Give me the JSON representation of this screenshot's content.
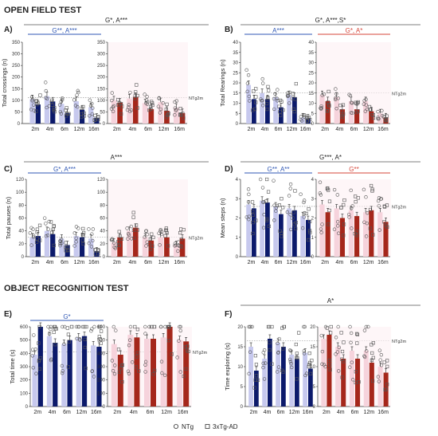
{
  "sections": [
    "OPEN FIELD TEST",
    "OBJECT RECOGNITION TEST"
  ],
  "legend": {
    "ntg": "NTg",
    "tg": "3xTg-AD"
  },
  "colors": {
    "ntg_male": "#c7c9ee",
    "tg_male": "#0c1a6b",
    "ntg_female": "#f6d3dc",
    "tg_female": "#a5271b",
    "blue_line": "#2f57b4",
    "red_line": "#d6463a",
    "grey_line": "#555555"
  },
  "chart_data": [
    {
      "type": "bar",
      "panel": "A)",
      "ylabel": "Total crossings (n)",
      "ylim": [
        0,
        350
      ],
      "yticks": [
        0,
        50,
        100,
        150,
        200,
        250,
        300,
        350
      ],
      "categories": [
        "2m",
        "4m",
        "6m",
        "12m",
        "16m"
      ],
      "reference": {
        "label": "NTg2m",
        "value": 112
      },
      "top_stat": "G*, A***",
      "left_stat": "G**, A***",
      "right_stat": "",
      "series": [
        {
          "name": "NTg",
          "sex": "male",
          "values": [
            105,
            118,
            85,
            96,
            70
          ]
        },
        {
          "name": "3xTg-AD",
          "sex": "male",
          "values": [
            82,
            95,
            45,
            60,
            25
          ]
        },
        {
          "name": "NTg",
          "sex": "female",
          "values": [
            100,
            108,
            88,
            92,
            68
          ]
        },
        {
          "name": "3xTg-AD",
          "sex": "female",
          "values": [
            90,
            115,
            62,
            55,
            45
          ]
        }
      ]
    },
    {
      "type": "bar",
      "panel": "B)",
      "ylabel": "Total Rearings (n)",
      "ylim": [
        0,
        40
      ],
      "yticks": [
        0,
        5,
        10,
        15,
        20,
        25,
        30,
        35,
        40
      ],
      "categories": [
        "2m",
        "4m",
        "6m",
        "12m",
        "16m"
      ],
      "reference": {
        "label": "NTg2m",
        "value": 15
      },
      "top_stat": "G*, A***,S*",
      "left_stat": "A***",
      "right_stat": "G*, A*",
      "series": [
        {
          "name": "NTg",
          "sex": "male",
          "values": [
            19,
            15,
            13,
            14,
            3
          ]
        },
        {
          "name": "3xTg-AD",
          "sex": "male",
          "values": [
            12,
            12,
            8,
            13,
            2.5
          ]
        },
        {
          "name": "NTg",
          "sex": "female",
          "values": [
            14,
            13,
            11,
            11,
            5
          ]
        },
        {
          "name": "3xTg-AD",
          "sex": "female",
          "values": [
            11,
            7,
            7,
            6,
            3
          ]
        }
      ]
    },
    {
      "type": "bar",
      "panel": "C)",
      "ylabel": "Total pauses (n)",
      "ylim": [
        0,
        120
      ],
      "yticks": [
        0,
        20,
        40,
        60,
        80,
        100,
        120
      ],
      "categories": [
        "2m",
        "4m",
        "6m",
        "12m",
        "16m"
      ],
      "reference": {
        "label": "NTg2m",
        "value": 30
      },
      "top_stat": "A***",
      "left_stat": "G*, A***",
      "right_stat": "",
      "series": [
        {
          "name": "NTg",
          "sex": "male",
          "values": [
            30,
            40,
            28,
            32,
            28
          ]
        },
        {
          "name": "3xTg-AD",
          "sex": "male",
          "values": [
            32,
            35,
            18,
            30,
            8
          ]
        },
        {
          "name": "NTg",
          "sex": "female",
          "values": [
            22,
            40,
            30,
            30,
            18
          ]
        },
        {
          "name": "3xTg-AD",
          "sex": "female",
          "values": [
            30,
            45,
            25,
            30,
            28
          ]
        }
      ]
    },
    {
      "type": "bar",
      "panel": "D)",
      "ylabel": "Mean steps (n)",
      "ylim": [
        0,
        4
      ],
      "yticks": [
        0,
        1,
        2,
        3,
        4
      ],
      "categories": [
        "2m",
        "4m",
        "6m",
        "12m",
        "16m"
      ],
      "reference": {
        "label": "NTg2m",
        "value": 2.6
      },
      "top_stat": "G***, A*",
      "left_stat": "G**, A**",
      "right_stat": "G**",
      "series": [
        {
          "name": "NTg",
          "sex": "male",
          "values": [
            2.7,
            2.9,
            2.6,
            2.5,
            2.1
          ]
        },
        {
          "name": "3xTg-AD",
          "sex": "male",
          "values": [
            2.5,
            2.8,
            2.2,
            2.4,
            1.9
          ]
        },
        {
          "name": "NTg",
          "sex": "female",
          "values": [
            2.7,
            2.5,
            2.4,
            2.3,
            2.3
          ]
        },
        {
          "name": "3xTg-AD",
          "sex": "female",
          "values": [
            2.3,
            2.0,
            2.1,
            2.4,
            1.8
          ]
        }
      ]
    },
    {
      "type": "bar",
      "panel": "E)",
      "ylabel": "Total time (s)",
      "ylim": [
        0,
        600
      ],
      "yticks": [
        0,
        100,
        200,
        300,
        400,
        500,
        600
      ],
      "categories": [
        "2m",
        "4m",
        "6m",
        "12m",
        "16m"
      ],
      "reference": {
        "label": "NTg2m",
        "value": 410
      },
      "top_stat": "",
      "left_stat": "G*",
      "right_stat": "",
      "series": [
        {
          "name": "NTg",
          "sex": "male",
          "values": [
            390,
            530,
            470,
            520,
            460
          ]
        },
        {
          "name": "3xTg-AD",
          "sex": "male",
          "values": [
            600,
            480,
            500,
            530,
            450
          ]
        },
        {
          "name": "NTg",
          "sex": "female",
          "values": [
            470,
            540,
            510,
            520,
            500
          ]
        },
        {
          "name": "3xTg-AD",
          "sex": "female",
          "values": [
            390,
            520,
            510,
            600,
            490
          ]
        }
      ]
    },
    {
      "type": "bar",
      "panel": "F)",
      "ylabel": "Time exploring (s)",
      "ylim": [
        0,
        20
      ],
      "yticks": [
        0,
        5,
        10,
        15,
        20
      ],
      "categories": [
        "2m",
        "4m",
        "6m",
        "12m",
        "16m"
      ],
      "reference": {
        "label": "NTg2m",
        "value": 16.5
      },
      "top_stat": "A*",
      "left_stat": "",
      "right_stat": "",
      "series": [
        {
          "name": "NTg",
          "sex": "male",
          "values": [
            15,
            12,
            16,
            13,
            13.5
          ]
        },
        {
          "name": "3xTg-AD",
          "sex": "male",
          "values": [
            9,
            17,
            15,
            12,
            9.5
          ]
        },
        {
          "name": "NTg",
          "sex": "female",
          "values": [
            17,
            15,
            14,
            14,
            10
          ]
        },
        {
          "name": "3xTg-AD",
          "sex": "female",
          "values": [
            18,
            12,
            12,
            11,
            8.5
          ]
        }
      ]
    }
  ]
}
